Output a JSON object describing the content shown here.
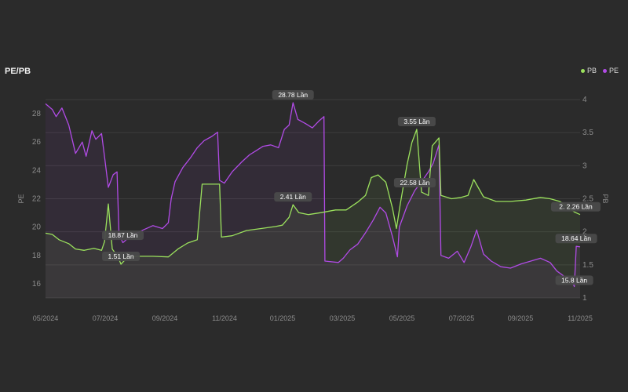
{
  "chart": {
    "title": "PE/PB",
    "legend": [
      {
        "name": "PB",
        "color": "#9be15d"
      },
      {
        "name": "PE",
        "color": "#b14be6"
      }
    ]
  },
  "chart_data": {
    "type": "line",
    "title": "PE/PB",
    "x_ticks": [
      "05/2024",
      "07/2024",
      "09/2024",
      "11/2024",
      "01/2025",
      "03/2025",
      "05/2025",
      "07/2025",
      "09/2025",
      "11/2025"
    ],
    "x_range": [
      "2024-05-01",
      "2025-11-05"
    ],
    "y_left": {
      "label": "PE",
      "range": [
        15,
        29
      ],
      "ticks": [
        16,
        18,
        20,
        22,
        24,
        26,
        28
      ]
    },
    "y_right": {
      "label": "PB",
      "range": [
        1,
        4
      ],
      "ticks": [
        1,
        1.5,
        2,
        2.5,
        3,
        3.5,
        4
      ]
    },
    "grid": true,
    "legend_position": "top-right",
    "series": [
      {
        "name": "PE",
        "axis": "left",
        "color": "#b14be6",
        "points": [
          [
            "2024-05-01",
            28.7
          ],
          [
            "2024-05-08",
            28.3
          ],
          [
            "2024-05-12",
            27.8
          ],
          [
            "2024-05-18",
            28.4
          ],
          [
            "2024-05-25",
            27.2
          ],
          [
            "2024-06-01",
            25.2
          ],
          [
            "2024-06-08",
            26.0
          ],
          [
            "2024-06-12",
            25.0
          ],
          [
            "2024-06-18",
            26.8
          ],
          [
            "2024-06-22",
            26.2
          ],
          [
            "2024-06-28",
            26.6
          ],
          [
            "2024-07-01",
            25.0
          ],
          [
            "2024-07-05",
            22.8
          ],
          [
            "2024-07-10",
            23.7
          ],
          [
            "2024-07-14",
            23.9
          ],
          [
            "2024-07-16",
            19.5
          ],
          [
            "2024-07-20",
            18.9
          ],
          [
            "2024-07-25",
            19.2
          ],
          [
            "2024-08-01",
            19.5
          ],
          [
            "2024-08-10",
            19.8
          ],
          [
            "2024-08-20",
            20.1
          ],
          [
            "2024-08-30",
            19.9
          ],
          [
            "2024-09-05",
            20.3
          ],
          [
            "2024-09-08",
            22.0
          ],
          [
            "2024-09-12",
            23.2
          ],
          [
            "2024-09-20",
            24.2
          ],
          [
            "2024-09-28",
            24.9
          ],
          [
            "2024-10-05",
            25.6
          ],
          [
            "2024-10-12",
            26.1
          ],
          [
            "2024-10-20",
            26.4
          ],
          [
            "2024-10-26",
            26.7
          ],
          [
            "2024-10-28",
            23.3
          ],
          [
            "2024-11-02",
            23.1
          ],
          [
            "2024-11-10",
            23.9
          ],
          [
            "2024-11-20",
            24.6
          ],
          [
            "2024-11-28",
            25.1
          ],
          [
            "2024-12-05",
            25.4
          ],
          [
            "2024-12-12",
            25.7
          ],
          [
            "2024-12-20",
            25.8
          ],
          [
            "2024-12-28",
            25.6
          ],
          [
            "2025-01-03",
            26.9
          ],
          [
            "2025-01-08",
            27.2
          ],
          [
            "2025-01-12",
            28.78
          ],
          [
            "2025-01-17",
            27.6
          ],
          [
            "2025-01-25",
            27.3
          ],
          [
            "2025-02-01",
            27.0
          ],
          [
            "2025-02-08",
            27.5
          ],
          [
            "2025-02-13",
            27.8
          ],
          [
            "2025-02-14",
            17.6
          ],
          [
            "2025-02-28",
            17.5
          ],
          [
            "2025-03-05",
            17.8
          ],
          [
            "2025-03-12",
            18.4
          ],
          [
            "2025-03-20",
            18.8
          ],
          [
            "2025-03-28",
            19.6
          ],
          [
            "2025-04-05",
            20.5
          ],
          [
            "2025-04-12",
            21.4
          ],
          [
            "2025-04-18",
            21.0
          ],
          [
            "2025-04-25",
            19.3
          ],
          [
            "2025-04-30",
            17.9
          ],
          [
            "2025-05-02",
            20.0
          ],
          [
            "2025-05-10",
            21.5
          ],
          [
            "2025-05-18",
            22.58
          ],
          [
            "2025-05-25",
            23.2
          ],
          [
            "2025-06-01",
            23.9
          ],
          [
            "2025-06-06",
            24.5
          ],
          [
            "2025-06-12",
            25.8
          ],
          [
            "2025-06-14",
            18.0
          ],
          [
            "2025-06-22",
            17.8
          ],
          [
            "2025-07-01",
            18.3
          ],
          [
            "2025-07-08",
            17.5
          ],
          [
            "2025-07-15",
            18.6
          ],
          [
            "2025-07-21",
            19.8
          ],
          [
            "2025-07-28",
            18.1
          ],
          [
            "2025-08-05",
            17.6
          ],
          [
            "2025-08-15",
            17.2
          ],
          [
            "2025-08-25",
            17.1
          ],
          [
            "2025-09-05",
            17.4
          ],
          [
            "2025-09-15",
            17.6
          ],
          [
            "2025-09-25",
            17.8
          ],
          [
            "2025-10-05",
            17.5
          ],
          [
            "2025-10-12",
            16.9
          ],
          [
            "2025-10-20",
            16.5
          ],
          [
            "2025-10-26",
            16.4
          ],
          [
            "2025-10-30",
            15.8
          ],
          [
            "2025-11-01",
            18.64
          ],
          [
            "2025-11-05",
            18.6
          ]
        ]
      },
      {
        "name": "PB",
        "axis": "right",
        "color": "#9be15d",
        "points": [
          [
            "2024-05-01",
            1.98
          ],
          [
            "2024-05-08",
            1.96
          ],
          [
            "2024-05-15",
            1.88
          ],
          [
            "2024-05-25",
            1.82
          ],
          [
            "2024-06-01",
            1.74
          ],
          [
            "2024-06-10",
            1.72
          ],
          [
            "2024-06-20",
            1.75
          ],
          [
            "2024-06-28",
            1.72
          ],
          [
            "2024-07-01",
            1.85
          ],
          [
            "2024-07-05",
            2.42
          ],
          [
            "2024-07-09",
            1.74
          ],
          [
            "2024-07-15",
            1.62
          ],
          [
            "2024-07-18",
            1.51
          ],
          [
            "2024-07-25",
            1.62
          ],
          [
            "2024-08-05",
            1.63
          ],
          [
            "2024-08-20",
            1.63
          ],
          [
            "2024-09-05",
            1.62
          ],
          [
            "2024-09-15",
            1.74
          ],
          [
            "2024-09-25",
            1.83
          ],
          [
            "2024-10-05",
            1.88
          ],
          [
            "2024-10-10",
            2.72
          ],
          [
            "2024-10-28",
            2.72
          ],
          [
            "2024-10-30",
            1.92
          ],
          [
            "2024-11-10",
            1.94
          ],
          [
            "2024-11-25",
            2.02
          ],
          [
            "2024-12-10",
            2.05
          ],
          [
            "2024-12-25",
            2.08
          ],
          [
            "2025-01-01",
            2.1
          ],
          [
            "2025-01-08",
            2.22
          ],
          [
            "2025-01-12",
            2.41
          ],
          [
            "2025-01-18",
            2.29
          ],
          [
            "2025-01-28",
            2.26
          ],
          [
            "2025-02-10",
            2.29
          ],
          [
            "2025-02-25",
            2.33
          ],
          [
            "2025-03-08",
            2.33
          ],
          [
            "2025-03-20",
            2.45
          ],
          [
            "2025-03-28",
            2.55
          ],
          [
            "2025-04-03",
            2.82
          ],
          [
            "2025-04-10",
            2.86
          ],
          [
            "2025-04-18",
            2.75
          ],
          [
            "2025-04-25",
            2.35
          ],
          [
            "2025-04-29",
            2.05
          ],
          [
            "2025-05-03",
            2.42
          ],
          [
            "2025-05-10",
            3.02
          ],
          [
            "2025-05-15",
            3.35
          ],
          [
            "2025-05-20",
            3.55
          ],
          [
            "2025-05-25",
            2.6
          ],
          [
            "2025-06-01",
            2.55
          ],
          [
            "2025-06-05",
            3.3
          ],
          [
            "2025-06-12",
            3.42
          ],
          [
            "2025-06-14",
            2.55
          ],
          [
            "2025-06-25",
            2.5
          ],
          [
            "2025-07-05",
            2.52
          ],
          [
            "2025-07-12",
            2.55
          ],
          [
            "2025-07-18",
            2.79
          ],
          [
            "2025-07-28",
            2.53
          ],
          [
            "2025-08-10",
            2.46
          ],
          [
            "2025-08-25",
            2.46
          ],
          [
            "2025-09-10",
            2.48
          ],
          [
            "2025-09-25",
            2.52
          ],
          [
            "2025-10-05",
            2.5
          ],
          [
            "2025-10-15",
            2.46
          ],
          [
            "2025-10-25",
            2.36
          ],
          [
            "2025-10-30",
            2.3
          ],
          [
            "2025-11-05",
            2.26
          ]
        ]
      }
    ],
    "annotations": [
      {
        "series": "PE",
        "x": "2024-07-20",
        "y": 18.87,
        "text": "18.87 Lần"
      },
      {
        "series": "PE",
        "x": "2025-01-12",
        "y": 28.78,
        "text": "28.78 Lần"
      },
      {
        "series": "PE",
        "x": "2025-05-18",
        "y": 22.58,
        "text": "22.58 Lần"
      },
      {
        "series": "PE",
        "x": "2025-11-01",
        "y": 18.64,
        "text": "18.64 Lần"
      },
      {
        "series": "PE",
        "x": "2025-10-30",
        "y": 15.8,
        "text": "15.8 Lần"
      },
      {
        "series": "PB",
        "x": "2024-07-18",
        "y": 1.51,
        "text": "1.51 Lần"
      },
      {
        "series": "PB",
        "x": "2025-01-12",
        "y": 2.41,
        "text": "2.41 Lần"
      },
      {
        "series": "PB",
        "x": "2025-05-20",
        "y": 3.55,
        "text": "3.55 Lần"
      },
      {
        "series": "PB",
        "x": "2025-11-05",
        "y": 2.26,
        "text": "2. 2.26 Lần"
      }
    ]
  }
}
